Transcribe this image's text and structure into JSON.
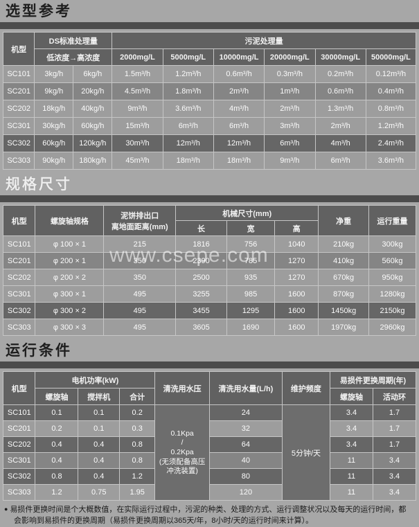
{
  "watermark": {
    "text": "www.csepe.com"
  },
  "footer": {
    "bullet": "●",
    "text": "易损件更换时间是个大概数值，在实际运行过程中，污泥的种类、处理的方式、运行调整状况以及每天的运行时间，都会影响到易损件的更换周期（易损件更换周期以365天/年，8小时/天的运行时间来计算）。"
  },
  "sections": [
    {
      "title": "选型参考",
      "table": {
        "header_rows": [
          [
            {
              "t": "机型",
              "rs": 2,
              "n": "col-header-model"
            },
            {
              "t": "DS标准处理量",
              "cs": 2,
              "n": "col-header-ds-capacity"
            },
            {
              "t": "污泥处理量",
              "cs": 6,
              "n": "col-header-sludge-capacity"
            }
          ],
          [
            {
              "t": "低浓度→高浓度",
              "cs": 2,
              "n": "col-header-concentration-range"
            },
            {
              "t": "2000mg/L"
            },
            {
              "t": "5000mg/L"
            },
            {
              "t": "10000mg/L"
            },
            {
              "t": "20000mg/L"
            },
            {
              "t": "30000mg/L"
            },
            {
              "t": "50000mg/L"
            }
          ]
        ],
        "rows": [
          {
            "shade": "light",
            "cells": [
              {
                "t": "SC101"
              },
              {
                "t": "3kg/h"
              },
              {
                "t": "6kg/h"
              },
              {
                "t": "1.5m³/h"
              },
              {
                "t": "1.2m³/h"
              },
              {
                "t": "0.6m³/h"
              },
              {
                "t": "0.3m³/h"
              },
              {
                "t": "0.2m³/h"
              },
              {
                "t": "0.12m³/h"
              }
            ]
          },
          {
            "shade": "mid",
            "cells": [
              {
                "t": "SC201"
              },
              {
                "t": "9kg/h"
              },
              {
                "t": "20kg/h"
              },
              {
                "t": "4.5m³/h"
              },
              {
                "t": "1.8m³/h"
              },
              {
                "t": "2m³/h"
              },
              {
                "t": "1m³/h"
              },
              {
                "t": "0.6m³/h"
              },
              {
                "t": "0.4m³/h"
              }
            ]
          },
          {
            "shade": "light",
            "cells": [
              {
                "t": "SC202"
              },
              {
                "t": "18kg/h"
              },
              {
                "t": "40kg/h"
              },
              {
                "t": "9m³/h"
              },
              {
                "t": "3.6m³/h"
              },
              {
                "t": "4m³/h"
              },
              {
                "t": "2m³/h"
              },
              {
                "t": "1.3m³/h"
              },
              {
                "t": "0.8m³/h"
              }
            ]
          },
          {
            "shade": "light",
            "cells": [
              {
                "t": "SC301"
              },
              {
                "t": "30kg/h"
              },
              {
                "t": "60kg/h"
              },
              {
                "t": "15m³/h"
              },
              {
                "t": "6m³/h"
              },
              {
                "t": "6m³/h"
              },
              {
                "t": "3m³/h"
              },
              {
                "t": "2m³/h"
              },
              {
                "t": "1.2m³/h"
              }
            ]
          },
          {
            "shade": "dark",
            "cells": [
              {
                "t": "SC302"
              },
              {
                "t": "60kg/h"
              },
              {
                "t": "120kg/h"
              },
              {
                "t": "30m³/h"
              },
              {
                "t": "12m³/h"
              },
              {
                "t": "12m³/h"
              },
              {
                "t": "6m³/h"
              },
              {
                "t": "4m³/h"
              },
              {
                "t": "2.4m³/h"
              }
            ]
          },
          {
            "shade": "light",
            "cells": [
              {
                "t": "SC303"
              },
              {
                "t": "90kg/h"
              },
              {
                "t": "180kg/h"
              },
              {
                "t": "45m³/h"
              },
              {
                "t": "18m³/h"
              },
              {
                "t": "18m³/h"
              },
              {
                "t": "9m³/h"
              },
              {
                "t": "6m³/h"
              },
              {
                "t": "3.6m³/h"
              }
            ]
          }
        ]
      }
    },
    {
      "title": "规格尺寸",
      "table": {
        "header_rows": [
          [
            {
              "t": "机型",
              "rs": 2,
              "n": "col-header-model"
            },
            {
              "t": "螺旋轴规格",
              "rs": 2,
              "n": "col-header-screw-spec"
            },
            {
              "t": "泥饼排出口\n离地面距离(mm)",
              "rs": 2,
              "cls": "pre",
              "n": "col-header-outlet-height"
            },
            {
              "t": "机械尺寸(mm)",
              "cs": 3,
              "n": "col-header-machine-size"
            },
            {
              "t": "净重",
              "rs": 2,
              "n": "col-header-net-weight"
            },
            {
              "t": "运行重量",
              "rs": 2,
              "n": "col-header-operating-weight"
            }
          ],
          [
            {
              "t": "长",
              "n": "col-header-length"
            },
            {
              "t": "宽",
              "n": "col-header-width"
            },
            {
              "t": "高",
              "n": "col-header-height"
            }
          ]
        ],
        "rows": [
          {
            "shade": "light",
            "cells": [
              {
                "t": "SC101"
              },
              {
                "t": "φ 100 × 1"
              },
              {
                "t": "215"
              },
              {
                "t": "1816"
              },
              {
                "t": "756"
              },
              {
                "t": "1040"
              },
              {
                "t": "210kg"
              },
              {
                "t": "300kg"
              }
            ]
          },
          {
            "shade": "mid",
            "cells": [
              {
                "t": "SC201"
              },
              {
                "t": "φ 200 × 1"
              },
              {
                "t": "350"
              },
              {
                "t": "2390"
              },
              {
                "t": "785"
              },
              {
                "t": "1270"
              },
              {
                "t": "410kg"
              },
              {
                "t": "560kg"
              }
            ]
          },
          {
            "shade": "light",
            "cells": [
              {
                "t": "SC202"
              },
              {
                "t": "φ 200 × 2"
              },
              {
                "t": "350"
              },
              {
                "t": "2500"
              },
              {
                "t": "935"
              },
              {
                "t": "1270"
              },
              {
                "t": "670kg"
              },
              {
                "t": "950kg"
              }
            ]
          },
          {
            "shade": "light",
            "cells": [
              {
                "t": "SC301"
              },
              {
                "t": "φ 300 × 1"
              },
              {
                "t": "495"
              },
              {
                "t": "3255"
              },
              {
                "t": "985"
              },
              {
                "t": "1600"
              },
              {
                "t": "870kg"
              },
              {
                "t": "1280kg"
              }
            ]
          },
          {
            "shade": "dark",
            "cells": [
              {
                "t": "SC302"
              },
              {
                "t": "φ 300 × 2"
              },
              {
                "t": "495"
              },
              {
                "t": "3455"
              },
              {
                "t": "1295"
              },
              {
                "t": "1600"
              },
              {
                "t": "1450kg"
              },
              {
                "t": "2150kg"
              }
            ]
          },
          {
            "shade": "light",
            "cells": [
              {
                "t": "SC303"
              },
              {
                "t": "φ 300 × 3"
              },
              {
                "t": "495"
              },
              {
                "t": "3605"
              },
              {
                "t": "1690"
              },
              {
                "t": "1600"
              },
              {
                "t": "1970kg"
              },
              {
                "t": "2960kg"
              }
            ]
          }
        ]
      }
    },
    {
      "title": "运行条件",
      "table": {
        "header_rows": [
          [
            {
              "t": "机型",
              "rs": 2,
              "n": "col-header-model"
            },
            {
              "t": "电机功率(kW)",
              "cs": 3,
              "n": "col-header-motor-power"
            },
            {
              "t": "清洗用水压",
              "rs": 2,
              "n": "col-header-wash-pressure"
            },
            {
              "t": "清洗用水量(L/h)",
              "rs": 2,
              "n": "col-header-wash-volume"
            },
            {
              "t": "维护频度",
              "rs": 2,
              "n": "col-header-maintenance-frequency"
            },
            {
              "t": "易损件更换周期(年)",
              "cs": 2,
              "n": "col-header-wear-parts-cycle"
            }
          ],
          [
            {
              "t": "螺旋轴",
              "n": "col-header-screw-shaft"
            },
            {
              "t": "搅拌机",
              "n": "col-header-mixer"
            },
            {
              "t": "合计",
              "n": "col-header-total"
            },
            {
              "t": "螺旋轴",
              "n": "col-header-screw-shaft"
            },
            {
              "t": "活动环",
              "n": "col-header-movable-ring"
            }
          ]
        ],
        "rows": [
          {
            "shade": "dark",
            "cells": [
              {
                "t": "SC101"
              },
              {
                "t": "0.1"
              },
              {
                "t": "0.1"
              },
              {
                "t": "0.2"
              },
              {
                "t": "0.1Kpa\n/\n0.2Kpa\n(无须配备高压冲洗装置)",
                "rs": 6,
                "cls": "merged pre small",
                "n": "wash-pressure-cell"
              },
              {
                "t": "24"
              },
              {
                "t": "5分钟/天",
                "rs": 6,
                "cls": "merged",
                "n": "maintenance-frequency-cell"
              },
              {
                "t": "3.4"
              },
              {
                "t": "1.7"
              }
            ]
          },
          {
            "shade": "light",
            "cells": [
              {
                "t": "SC201"
              },
              {
                "t": "0.2"
              },
              {
                "t": "0.1"
              },
              {
                "t": "0.3"
              },
              {
                "t": "32"
              },
              {
                "t": "3.4"
              },
              {
                "t": "1.7"
              }
            ]
          },
          {
            "shade": "dark",
            "cells": [
              {
                "t": "SC202"
              },
              {
                "t": "0.4"
              },
              {
                "t": "0.4"
              },
              {
                "t": "0.8"
              },
              {
                "t": "64"
              },
              {
                "t": "3.4"
              },
              {
                "t": "1.7"
              }
            ]
          },
          {
            "shade": "mid",
            "cells": [
              {
                "t": "SC301"
              },
              {
                "t": "0.4"
              },
              {
                "t": "0.4"
              },
              {
                "t": "0.8"
              },
              {
                "t": "40"
              },
              {
                "t": "11"
              },
              {
                "t": "3.4"
              }
            ]
          },
          {
            "shade": "dark",
            "cells": [
              {
                "t": "SC302"
              },
              {
                "t": "0.8"
              },
              {
                "t": "0.4"
              },
              {
                "t": "1.2"
              },
              {
                "t": "80"
              },
              {
                "t": "11"
              },
              {
                "t": "3.4"
              }
            ]
          },
          {
            "shade": "light",
            "cells": [
              {
                "t": "SC303"
              },
              {
                "t": "1.2"
              },
              {
                "t": "0.75"
              },
              {
                "t": "1.95"
              },
              {
                "t": "120"
              },
              {
                "t": "11"
              },
              {
                "t": "3.4"
              }
            ]
          }
        ]
      }
    }
  ]
}
